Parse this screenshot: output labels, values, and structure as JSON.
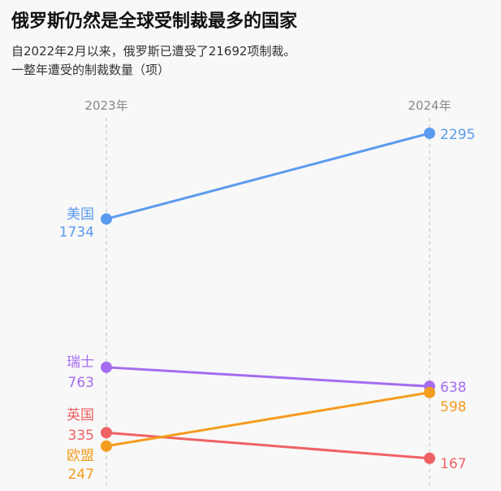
{
  "title": "俄罗斯仍然是全球受制裁最多的国家",
  "subtitle_line1": "自2022年2月以来，俄罗斯已遭受了21692项制裁。",
  "subtitle_line2": "一整年遭受的制裁数量（项）",
  "chart_data": {
    "type": "line",
    "title": "俄罗斯仍然是全球受制裁最多的国家",
    "categories": [
      "2023年",
      "2024年"
    ],
    "ylim": [
      150,
      2300
    ],
    "grid": false,
    "series": [
      {
        "name": "美国",
        "values": [
          1734,
          2295
        ],
        "color": "#5b9bef"
      },
      {
        "name": "瑞士",
        "values": [
          763,
          638
        ],
        "color": "#a56cf0"
      },
      {
        "name": "英国",
        "values": [
          335,
          167
        ],
        "color": "#ef6264"
      },
      {
        "name": "欧盟",
        "values": [
          247,
          598
        ],
        "color": "#f39c1d"
      }
    ]
  }
}
